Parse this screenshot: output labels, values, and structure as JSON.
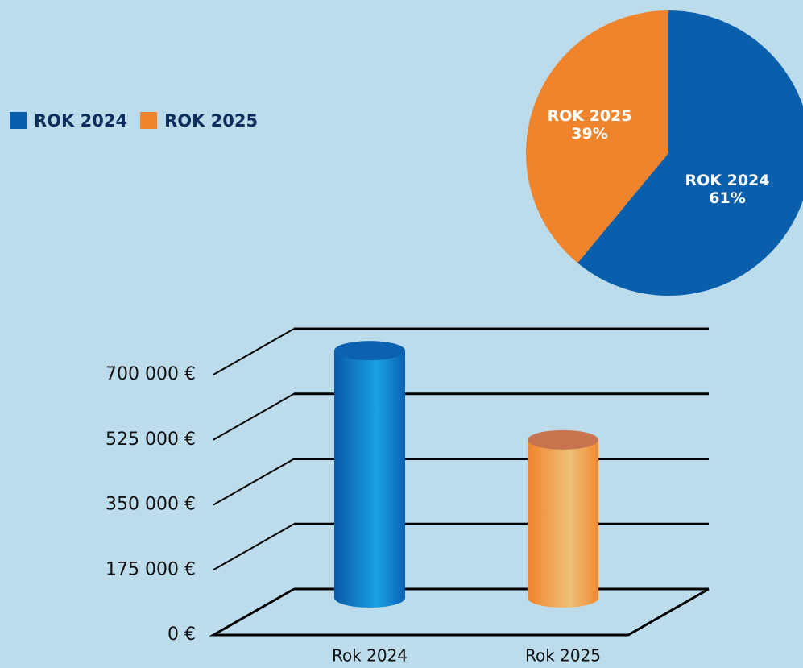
{
  "chart_data": [
    {
      "type": "pie",
      "categories": [
        "ROK 2024",
        "ROK 2025"
      ],
      "values": [
        61,
        39
      ],
      "value_labels": [
        "61%",
        "39%"
      ],
      "colors": [
        "#0a5fac",
        "#f0842c"
      ],
      "legend": "top-left"
    },
    {
      "type": "bar3d",
      "categories": [
        "Rok 2024",
        "Rok 2025"
      ],
      "values": [
        665000,
        425000
      ],
      "colors": [
        "#0a6fc0",
        "#f0902e"
      ],
      "ylim": [
        0,
        700000
      ],
      "yticks": [
        {
          "value": 0,
          "label": "0 €"
        },
        {
          "value": 175000,
          "label": "175 000 €"
        },
        {
          "value": 350000,
          "label": "350 000 €"
        },
        {
          "value": 525000,
          "label": "525 000 €"
        },
        {
          "value": 700000,
          "label": "700 000 €"
        }
      ],
      "grid": true
    }
  ]
}
